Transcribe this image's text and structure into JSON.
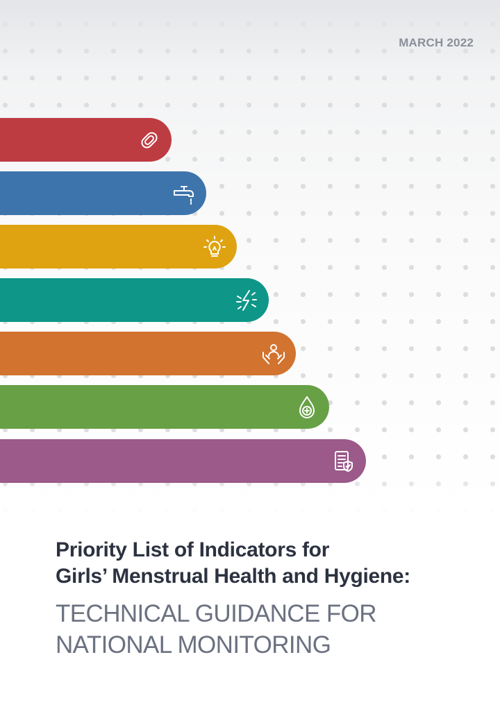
{
  "cover": {
    "date": "MARCH 2022",
    "title_lines": [
      "Priority List of Indicators for",
      "Girls’ Menstrual Health and Hygiene:"
    ],
    "subtitle_lines": [
      "TECHNICAL GUIDANCE FOR",
      "NATIONAL MONITORING"
    ]
  },
  "bars": [
    {
      "icon": "menstrual-pad-icon",
      "color": "#bd3c42"
    },
    {
      "icon": "water-tap-icon",
      "color": "#3e74ac"
    },
    {
      "icon": "lightbulb-icon",
      "color": "#dfa311"
    },
    {
      "icon": "pain-lightning-icon",
      "color": "#0e9688"
    },
    {
      "icon": "support-hands-icon",
      "color": "#d2732f"
    },
    {
      "icon": "health-drop-icon",
      "color": "#68a046"
    },
    {
      "icon": "policy-document-icon",
      "color": "#9b5a8a"
    }
  ]
}
